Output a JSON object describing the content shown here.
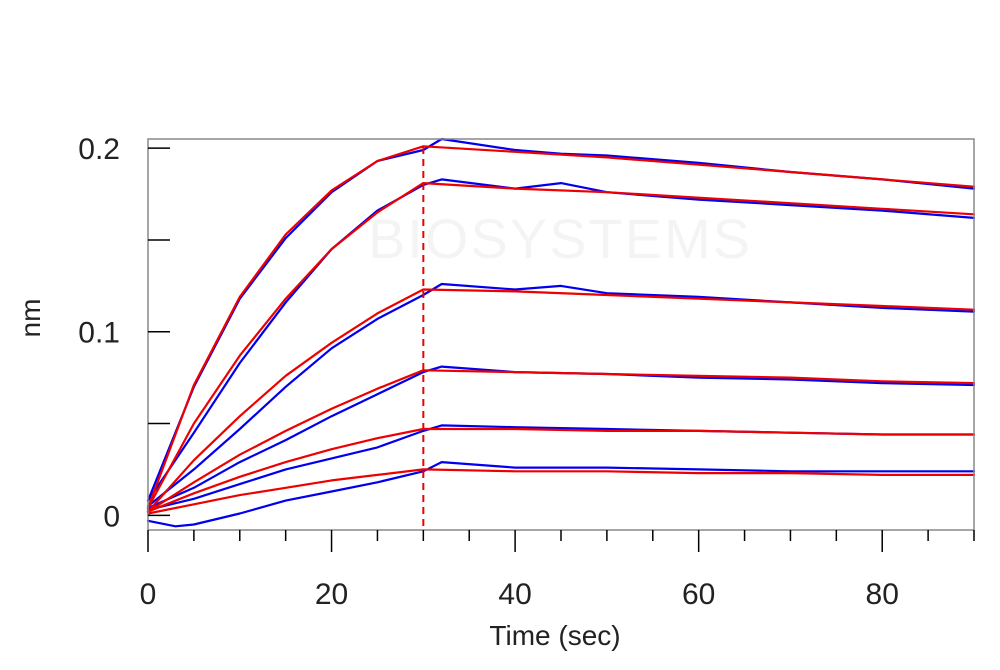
{
  "chart_data": {
    "type": "line",
    "title": "",
    "xlabel": "Time (sec)",
    "ylabel": "nm",
    "xlim": [
      0,
      90
    ],
    "ylim": [
      -0.008,
      0.205
    ],
    "x_ticks": [
      0,
      20,
      40,
      60,
      80
    ],
    "y_ticks": [
      0,
      0.1,
      0.2
    ],
    "y_tick_labels": [
      "0",
      "0.1",
      "0.2"
    ],
    "x_minor_step": 5,
    "y_minor_step": 0.05,
    "grid": false,
    "legend": "none",
    "watermark": "BIOSYSTEMS",
    "dissociation_start": 30,
    "colors": {
      "measured": "#0000ee",
      "fit": "#ee0000",
      "frame": "#888888"
    },
    "series": [
      {
        "role": "measured",
        "x": [
          0,
          5,
          10,
          15,
          20,
          25,
          30,
          32,
          40,
          45,
          50,
          60,
          70,
          80,
          90
        ],
        "values": [
          0.008,
          0.07,
          0.118,
          0.151,
          0.176,
          0.193,
          0.199,
          0.205,
          0.199,
          0.197,
          0.196,
          0.192,
          0.187,
          0.183,
          0.178
        ]
      },
      {
        "role": "fit",
        "x": [
          0,
          5,
          10,
          15,
          20,
          25,
          30,
          40,
          50,
          60,
          70,
          80,
          90
        ],
        "values": [
          0.004,
          0.071,
          0.119,
          0.153,
          0.177,
          0.193,
          0.201,
          0.198,
          0.195,
          0.191,
          0.187,
          0.183,
          0.179
        ]
      },
      {
        "role": "measured",
        "x": [
          0,
          5,
          10,
          15,
          20,
          25,
          30,
          32,
          40,
          45,
          50,
          60,
          70,
          80,
          90
        ],
        "values": [
          0.008,
          0.045,
          0.083,
          0.116,
          0.145,
          0.166,
          0.18,
          0.183,
          0.178,
          0.181,
          0.176,
          0.172,
          0.169,
          0.166,
          0.162
        ]
      },
      {
        "role": "fit",
        "x": [
          0,
          5,
          10,
          15,
          20,
          25,
          30,
          40,
          50,
          60,
          70,
          80,
          90
        ],
        "values": [
          0.004,
          0.05,
          0.087,
          0.118,
          0.145,
          0.165,
          0.181,
          0.178,
          0.176,
          0.173,
          0.17,
          0.167,
          0.164
        ]
      },
      {
        "role": "measured",
        "x": [
          0,
          5,
          10,
          15,
          20,
          25,
          30,
          32,
          40,
          45,
          50,
          60,
          70,
          80,
          90
        ],
        "values": [
          0.005,
          0.025,
          0.047,
          0.07,
          0.091,
          0.107,
          0.12,
          0.126,
          0.123,
          0.125,
          0.121,
          0.119,
          0.116,
          0.113,
          0.111
        ]
      },
      {
        "role": "fit",
        "x": [
          0,
          5,
          10,
          15,
          20,
          25,
          30,
          40,
          50,
          60,
          70,
          80,
          90
        ],
        "values": [
          0.002,
          0.03,
          0.054,
          0.076,
          0.094,
          0.11,
          0.123,
          0.122,
          0.12,
          0.118,
          0.116,
          0.114,
          0.112
        ]
      },
      {
        "role": "measured",
        "x": [
          0,
          5,
          10,
          15,
          20,
          25,
          30,
          32,
          40,
          50,
          60,
          70,
          80,
          90
        ],
        "values": [
          0.004,
          0.015,
          0.029,
          0.041,
          0.054,
          0.066,
          0.078,
          0.081,
          0.078,
          0.077,
          0.075,
          0.074,
          0.072,
          0.071
        ]
      },
      {
        "role": "fit",
        "x": [
          0,
          5,
          10,
          15,
          20,
          25,
          30,
          40,
          50,
          60,
          70,
          80,
          90
        ],
        "values": [
          0.002,
          0.018,
          0.033,
          0.046,
          0.058,
          0.069,
          0.079,
          0.078,
          0.077,
          0.076,
          0.075,
          0.073,
          0.072
        ]
      },
      {
        "role": "measured",
        "x": [
          0,
          5,
          10,
          15,
          20,
          25,
          30,
          32,
          40,
          50,
          60,
          70,
          80,
          90
        ],
        "values": [
          0.003,
          0.009,
          0.017,
          0.025,
          0.031,
          0.037,
          0.046,
          0.049,
          0.048,
          0.047,
          0.046,
          0.045,
          0.044,
          0.044
        ]
      },
      {
        "role": "fit",
        "x": [
          0,
          5,
          10,
          15,
          20,
          25,
          30,
          40,
          50,
          60,
          70,
          80,
          90
        ],
        "values": [
          0.002,
          0.012,
          0.021,
          0.029,
          0.036,
          0.042,
          0.047,
          0.047,
          0.046,
          0.046,
          0.045,
          0.044,
          0.044
        ]
      },
      {
        "role": "measured",
        "x": [
          0,
          3,
          5,
          10,
          15,
          20,
          25,
          30,
          32,
          40,
          50,
          60,
          70,
          80,
          90
        ],
        "values": [
          -0.003,
          -0.006,
          -0.005,
          0.001,
          0.008,
          0.013,
          0.018,
          0.024,
          0.029,
          0.026,
          0.026,
          0.025,
          0.024,
          0.024,
          0.024
        ]
      },
      {
        "role": "fit",
        "x": [
          0,
          5,
          10,
          15,
          20,
          25,
          30,
          40,
          50,
          60,
          70,
          80,
          90
        ],
        "values": [
          0.001,
          0.006,
          0.011,
          0.015,
          0.019,
          0.022,
          0.025,
          0.024,
          0.024,
          0.023,
          0.023,
          0.022,
          0.022
        ]
      }
    ]
  }
}
